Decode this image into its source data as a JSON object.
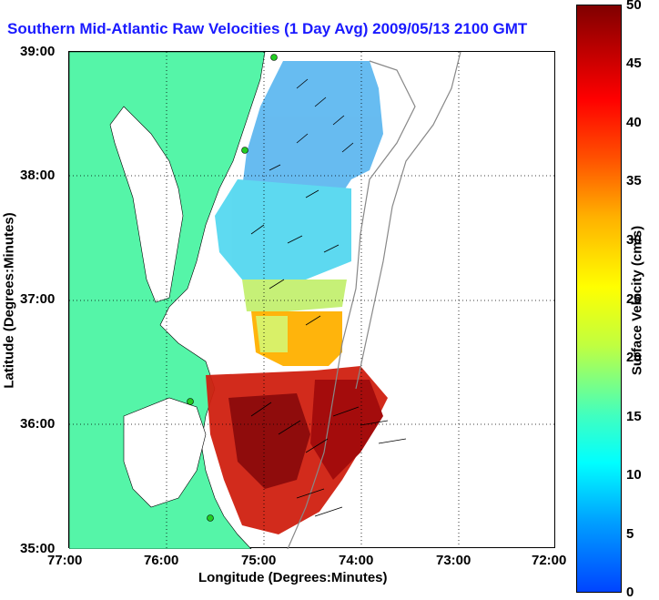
{
  "title": "Southern Mid-Atlantic Raw Velocities (1 Day Avg) 2009/05/13 2100 GMT",
  "xaxis": {
    "label": "Longitude (Degrees:Minutes)",
    "ticks": [
      "77:00",
      "76:00",
      "75:00",
      "74:00",
      "73:00",
      "72:00"
    ]
  },
  "yaxis": {
    "label": "Latitude (Degrees:Minutes)",
    "ticks": [
      "39:00",
      "38:00",
      "37:00",
      "36:00",
      "35:00"
    ]
  },
  "colorbar": {
    "label": "Surface Velocity (cm/s)",
    "ticks": [
      "50",
      "45",
      "40",
      "35",
      "30",
      "25",
      "20",
      "15",
      "10",
      "5",
      "0"
    ],
    "min": 0,
    "max": 50
  },
  "colors": {
    "land": "#55f5a8",
    "title": "#1a1aff",
    "vector": "#000000",
    "station": "#22cc22"
  }
}
